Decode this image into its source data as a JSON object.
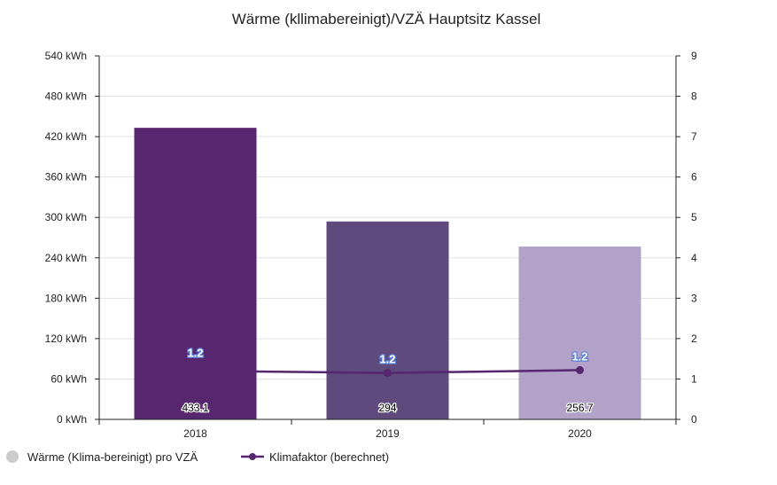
{
  "chart_data": {
    "type": "bar",
    "title": "Wärme (kllimabereinigt)/VZÄ Hauptsitz Kassel",
    "categories": [
      "2018",
      "2019",
      "2020"
    ],
    "series": [
      {
        "name": "Wärme (Klima-bereinigt) pro VZÄ",
        "type": "bar",
        "axis": "left",
        "values": [
          433.1,
          294,
          256.7
        ],
        "data_labels": [
          "433.1",
          "294",
          "256.7"
        ],
        "colors": [
          "#56266e",
          "#5e4a7c",
          "#b2a2c8"
        ]
      },
      {
        "name": "Klimafaktor (berechnet)",
        "type": "line",
        "axis": "right",
        "values": [
          1.2,
          1.15,
          1.22
        ],
        "data_labels": [
          "",
          "1.2",
          "1.2"
        ],
        "color": "#56266e"
      }
    ],
    "y_left": {
      "min": 0,
      "max": 540,
      "ticks": [
        0,
        60,
        120,
        180,
        240,
        300,
        360,
        420,
        480,
        540
      ],
      "tick_labels": [
        "0 kWh",
        "60 kWh",
        "120 kWh",
        "180 kWh",
        "240 kWh",
        "300 kWh",
        "360 kWh",
        "420 kWh",
        "480 kWh",
        "540 kWh"
      ]
    },
    "y_right": {
      "min": 0,
      "max": 9,
      "ticks": [
        0,
        1,
        2,
        3,
        4,
        5,
        6,
        7,
        8,
        9
      ],
      "tick_labels": [
        "0",
        "1",
        "2",
        "3",
        "4",
        "5",
        "6",
        "7",
        "8",
        "9"
      ]
    },
    "bar_extra_labels": [
      "1.2",
      "",
      ""
    ],
    "grid": true,
    "legend_position": "bottom-left"
  },
  "colors": {
    "grid": "#e3e3e3",
    "axis": "#222222",
    "legend_bar_marker": "#cccccc"
  }
}
